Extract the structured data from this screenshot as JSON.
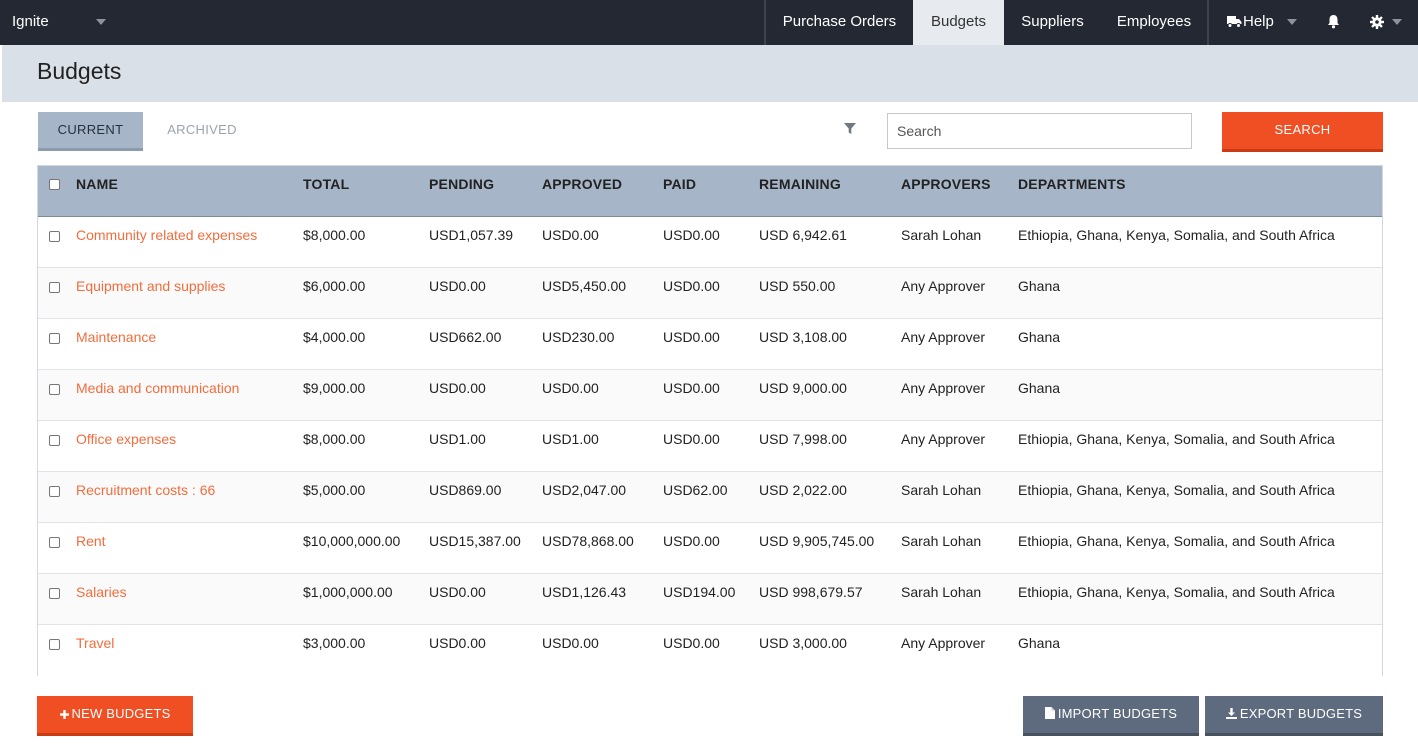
{
  "app": {
    "brand": "Ignite"
  },
  "nav": {
    "purchase_orders": "Purchase Orders",
    "budgets": "Budgets",
    "suppliers": "Suppliers",
    "employees": "Employees",
    "help": "Help",
    "help_icon": "truck-icon",
    "notifications_icon": "bell-icon",
    "settings_icon": "gear-icon"
  },
  "page": {
    "title": "Budgets"
  },
  "tabs": {
    "current": "CURRENT",
    "archived": "ARCHIVED"
  },
  "search": {
    "placeholder": "Search",
    "button": "SEARCH",
    "filter_icon": "filter-icon"
  },
  "table": {
    "columns": {
      "name": "NAME",
      "total": "TOTAL",
      "pending": "PENDING",
      "approved": "APPROVED",
      "paid": "PAID",
      "remaining": "REMAINING",
      "approvers": "APPROVERS",
      "departments": "DEPARTMENTS"
    },
    "rows": [
      {
        "name": "Community related expenses",
        "total": "$8,000.00",
        "pending": "USD1,057.39",
        "approved": "USD0.00",
        "paid": "USD0.00",
        "remaining": "USD 6,942.61",
        "approvers": "Sarah Lohan",
        "departments": "Ethiopia, Ghana, Kenya, Somalia, and South Africa"
      },
      {
        "name": "Equipment and supplies",
        "total": "$6,000.00",
        "pending": "USD0.00",
        "approved": "USD5,450.00",
        "paid": "USD0.00",
        "remaining": "USD 550.00",
        "approvers": "Any Approver",
        "departments": "Ghana"
      },
      {
        "name": "Maintenance",
        "total": "$4,000.00",
        "pending": "USD662.00",
        "approved": "USD230.00",
        "paid": "USD0.00",
        "remaining": "USD 3,108.00",
        "approvers": "Any Approver",
        "departments": "Ghana"
      },
      {
        "name": "Media and communication",
        "total": "$9,000.00",
        "pending": "USD0.00",
        "approved": "USD0.00",
        "paid": "USD0.00",
        "remaining": "USD 9,000.00",
        "approvers": "Any Approver",
        "departments": "Ghana"
      },
      {
        "name": "Office expenses",
        "total": "$8,000.00",
        "pending": "USD1.00",
        "approved": "USD1.00",
        "paid": "USD0.00",
        "remaining": "USD 7,998.00",
        "approvers": "Any Approver",
        "departments": "Ethiopia, Ghana, Kenya, Somalia, and South Africa"
      },
      {
        "name": "Recruitment costs : 66",
        "total": "$5,000.00",
        "pending": "USD869.00",
        "approved": "USD2,047.00",
        "paid": "USD62.00",
        "remaining": "USD 2,022.00",
        "approvers": "Sarah Lohan",
        "departments": "Ethiopia, Ghana, Kenya, Somalia, and South Africa"
      },
      {
        "name": "Rent",
        "total": "$10,000,000.00",
        "pending": "USD15,387.00",
        "approved": "USD78,868.00",
        "paid": "USD0.00",
        "remaining": "USD 9,905,745.00",
        "approvers": "Sarah Lohan",
        "departments": "Ethiopia, Ghana, Kenya, Somalia, and South Africa"
      },
      {
        "name": "Salaries",
        "total": "$1,000,000.00",
        "pending": "USD0.00",
        "approved": "USD1,126.43",
        "paid": "USD194.00",
        "remaining": "USD 998,679.57",
        "approvers": "Sarah Lohan",
        "departments": "Ethiopia, Ghana, Kenya, Somalia, and South Africa"
      },
      {
        "name": "Travel",
        "total": "$3,000.00",
        "pending": "USD0.00",
        "approved": "USD0.00",
        "paid": "USD0.00",
        "remaining": "USD 3,000.00",
        "approvers": "Any Approver",
        "departments": "Ghana"
      }
    ]
  },
  "actions": {
    "new_budgets": "NEW BUDGETS",
    "import_budgets": "IMPORT BUDGETS",
    "export_budgets": "EXPORT BUDGETS"
  },
  "colors": {
    "accent": "#f04e23",
    "link": "#f26d3d",
    "navbar": "#232832",
    "table_header": "#a6b5c8",
    "secondary_button": "#5e6a7d"
  }
}
